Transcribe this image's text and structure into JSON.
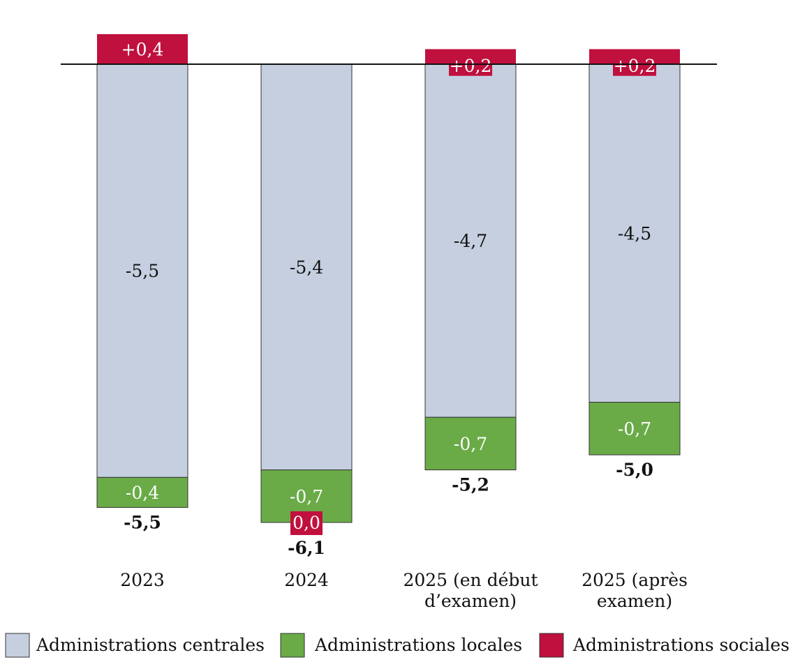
{
  "chart_data": {
    "type": "bar",
    "stacked": true,
    "categories": [
      [
        "2023"
      ],
      [
        "2024"
      ],
      [
        "2025 (en début",
        "d’examen)"
      ],
      [
        "2025 (après",
        "examen)"
      ]
    ],
    "series": [
      {
        "name": "Administrations centrales",
        "color": "#c5cfe0",
        "values": [
          -5.5,
          -5.4,
          -4.7,
          -4.5
        ],
        "labels": [
          "-5,5",
          "-5,4",
          "-4,7",
          "-4,5"
        ]
      },
      {
        "name": "Administrations locales",
        "color": "#6aab47",
        "values": [
          -0.4,
          -0.7,
          -0.7,
          -0.7
        ],
        "labels": [
          "-0,4",
          "-0,7",
          "-0,7",
          "-0,7"
        ]
      },
      {
        "name": "Administrations sociales",
        "color": "#c0103e",
        "values": [
          0.4,
          0.0,
          0.2,
          0.2
        ],
        "labels": [
          "+0,4",
          "0,0",
          "+0,2",
          "+0,2"
        ]
      }
    ],
    "totals": [
      -5.5,
      -6.1,
      -5.2,
      -5.0
    ],
    "total_labels": [
      "-5,5",
      "-6,1",
      "-5,2",
      "-5,0"
    ],
    "legend_position": "bottom",
    "grid": false
  }
}
